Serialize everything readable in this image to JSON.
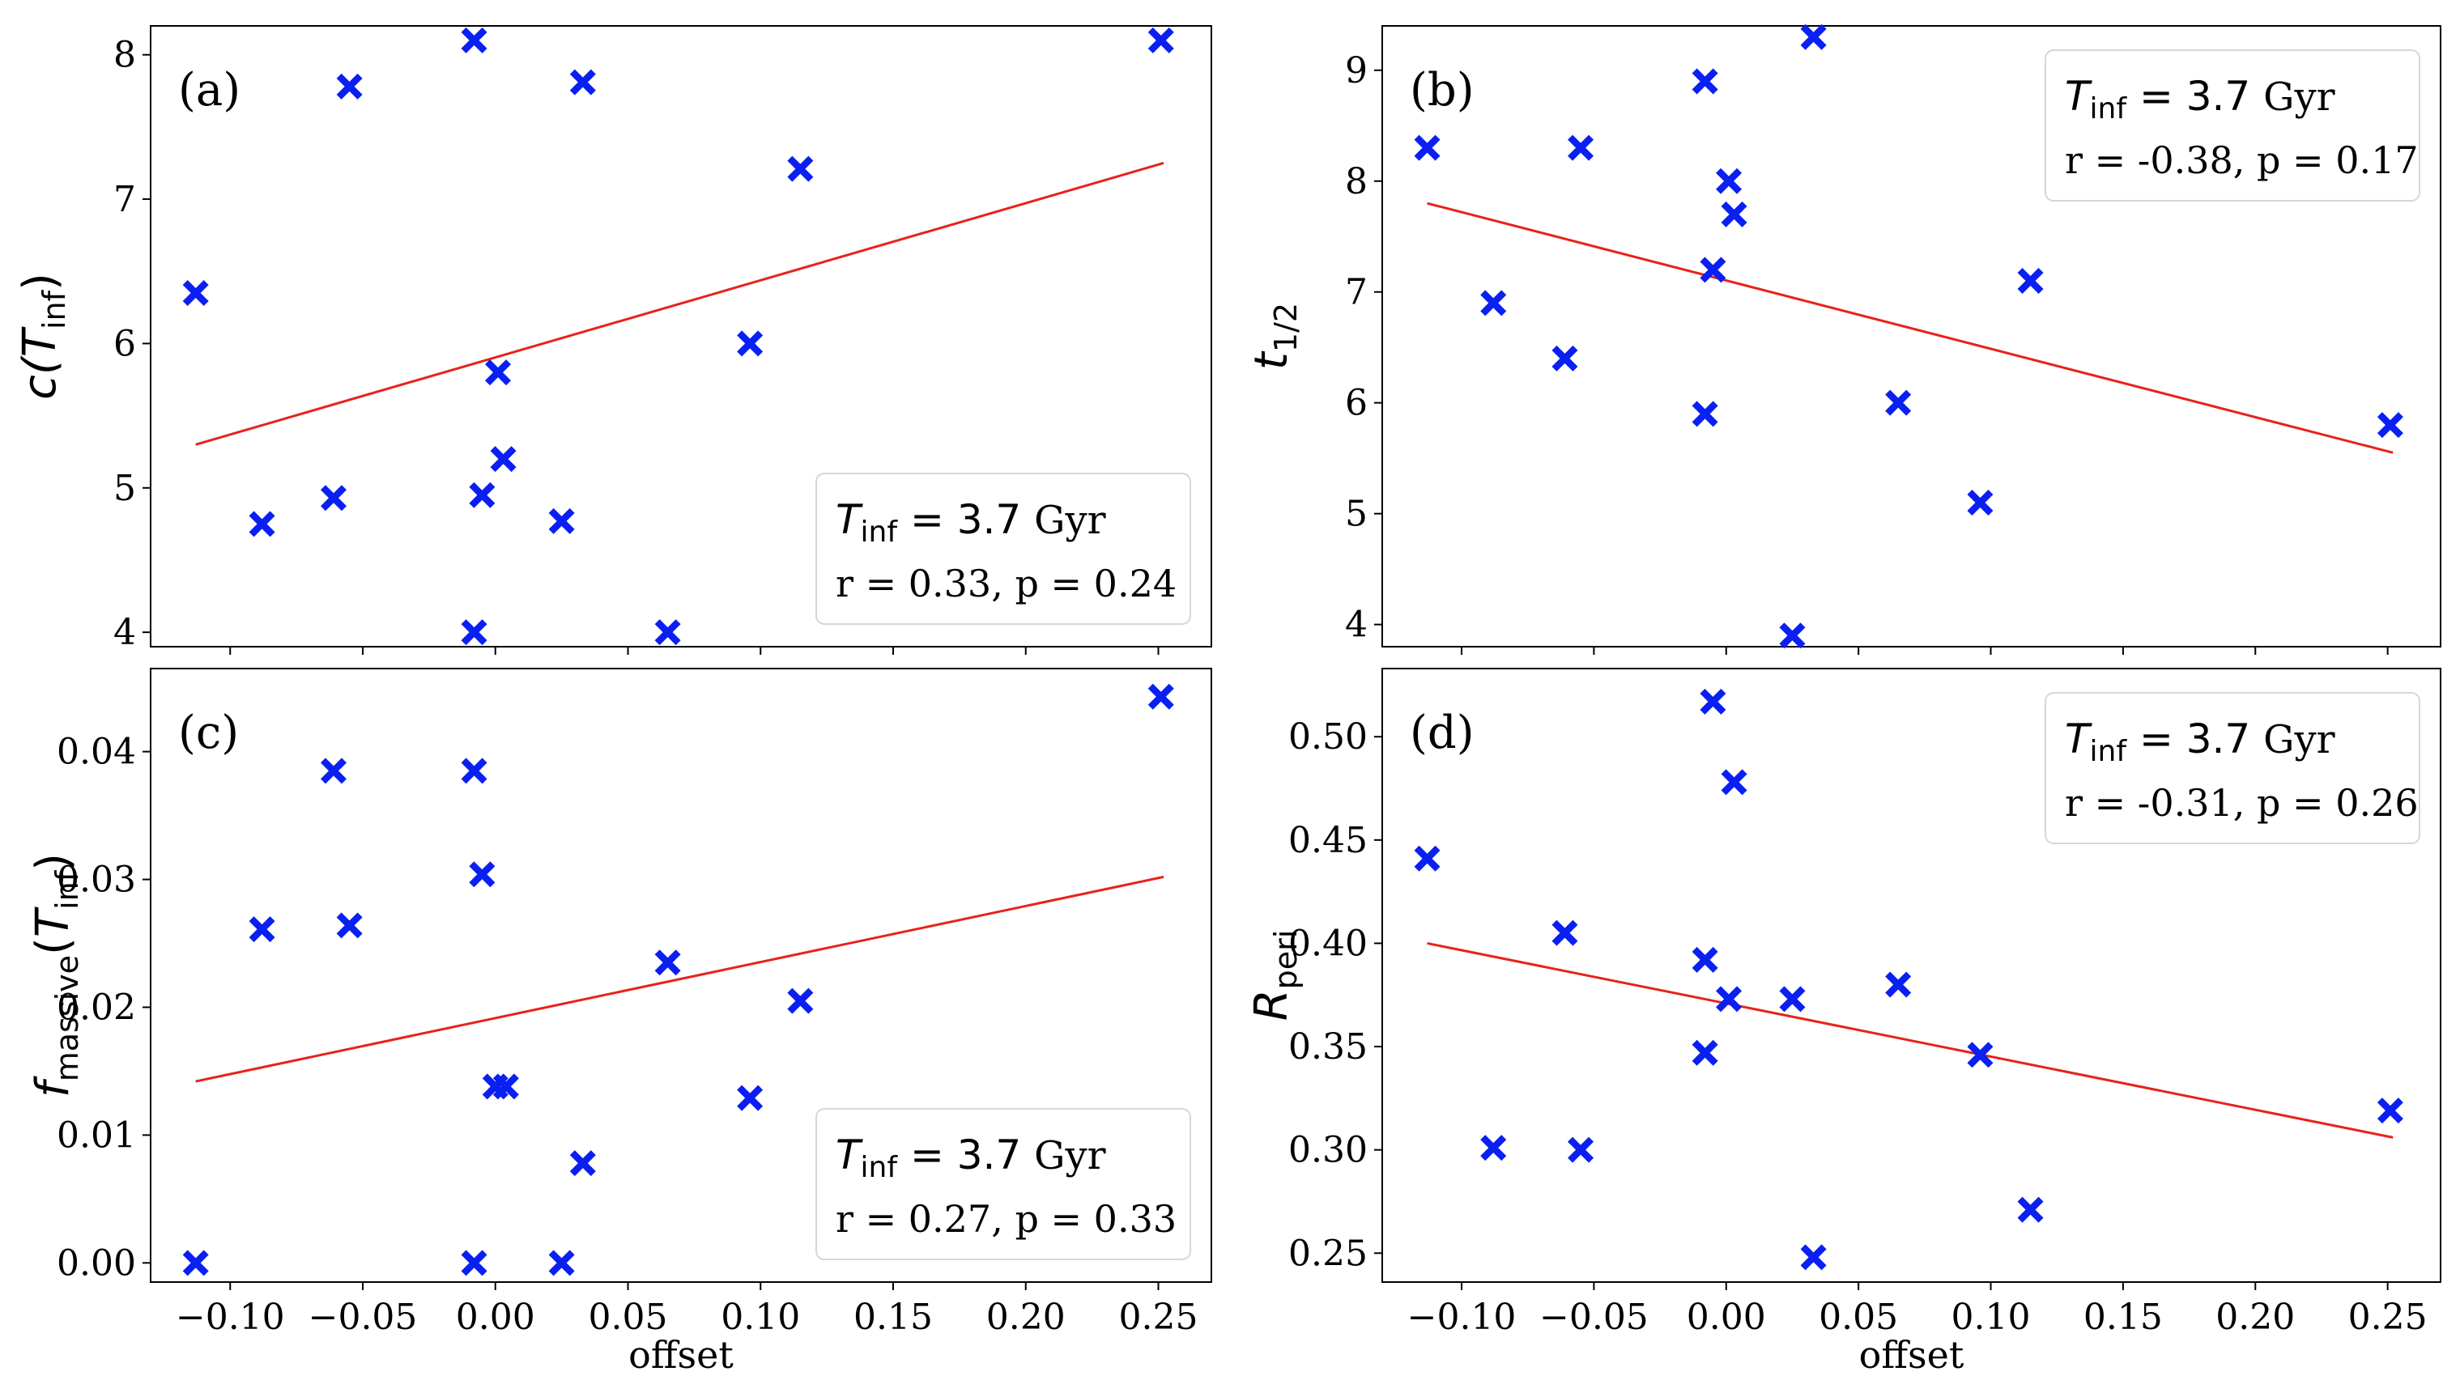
{
  "colors": {
    "marker": "#0a1ff2",
    "fit_line": "#e8221a"
  },
  "chart_data": [
    {
      "type": "scatter",
      "panel_label": "(a)",
      "ylabel": {
        "main": "c(T",
        "sub": "inf",
        "close": ")"
      },
      "xlabel": "",
      "xlim": [
        -0.13,
        0.27
      ],
      "ylim": [
        3.9,
        8.2
      ],
      "xticks": [
        -0.1,
        -0.05,
        0.0,
        0.05,
        0.1,
        0.15,
        0.2,
        0.25
      ],
      "xtick_labels": [
        "",
        "",
        "",
        "",
        "",
        "",
        "",
        ""
      ],
      "yticks": [
        4,
        5,
        6,
        7,
        8
      ],
      "ytick_labels": [
        "4",
        "5",
        "6",
        "7",
        "8"
      ],
      "legend": {
        "location": "bottom-right",
        "title_main": "T",
        "title_sub": "inf",
        "title_rest": " = 3.7 ",
        "title_unit": "Gyr",
        "stats": "r = 0.33, p = 0.24"
      },
      "fit_line": {
        "x": [
          -0.113,
          0.252
        ],
        "y": [
          5.3,
          7.25
        ]
      },
      "points": [
        {
          "x": -0.113,
          "y": 6.35
        },
        {
          "x": -0.088,
          "y": 4.75
        },
        {
          "x": -0.061,
          "y": 4.93
        },
        {
          "x": -0.055,
          "y": 7.78
        },
        {
          "x": -0.008,
          "y": 8.1
        },
        {
          "x": -0.005,
          "y": 4.95
        },
        {
          "x": -0.008,
          "y": 4.0
        },
        {
          "x": 0.001,
          "y": 5.8
        },
        {
          "x": 0.003,
          "y": 5.2
        },
        {
          "x": 0.025,
          "y": 4.77
        },
        {
          "x": 0.033,
          "y": 7.81
        },
        {
          "x": 0.065,
          "y": 4.0
        },
        {
          "x": 0.096,
          "y": 6.0
        },
        {
          "x": 0.115,
          "y": 7.21
        },
        {
          "x": 0.251,
          "y": 8.1
        }
      ]
    },
    {
      "type": "scatter",
      "panel_label": "(b)",
      "ylabel": {
        "main": "t",
        "sub": "1/2",
        "close": ""
      },
      "xlabel": "",
      "xlim": [
        -0.13,
        0.27
      ],
      "ylim": [
        3.8,
        9.4
      ],
      "xticks": [
        -0.1,
        -0.05,
        0.0,
        0.05,
        0.1,
        0.15,
        0.2,
        0.25
      ],
      "xtick_labels": [
        "",
        "",
        "",
        "",
        "",
        "",
        "",
        ""
      ],
      "yticks": [
        4,
        5,
        6,
        7,
        8,
        9
      ],
      "ytick_labels": [
        "4",
        "5",
        "6",
        "7",
        "8",
        "9"
      ],
      "legend": {
        "location": "top-right",
        "title_main": "T",
        "title_sub": "inf",
        "title_rest": " = 3.7 ",
        "title_unit": "Gyr",
        "stats": "r = -0.38, p = 0.17"
      },
      "fit_line": {
        "x": [
          -0.113,
          0.252
        ],
        "y": [
          7.8,
          5.55
        ]
      },
      "points": [
        {
          "x": -0.113,
          "y": 8.3
        },
        {
          "x": -0.088,
          "y": 6.9
        },
        {
          "x": -0.061,
          "y": 6.4
        },
        {
          "x": -0.055,
          "y": 8.3
        },
        {
          "x": -0.008,
          "y": 8.9
        },
        {
          "x": -0.005,
          "y": 7.2
        },
        {
          "x": -0.008,
          "y": 5.9
        },
        {
          "x": 0.001,
          "y": 8.0
        },
        {
          "x": 0.003,
          "y": 7.7
        },
        {
          "x": 0.025,
          "y": 3.9
        },
        {
          "x": 0.033,
          "y": 9.3
        },
        {
          "x": 0.065,
          "y": 6.0
        },
        {
          "x": 0.096,
          "y": 5.1
        },
        {
          "x": 0.115,
          "y": 7.1
        },
        {
          "x": 0.251,
          "y": 5.8
        }
      ]
    },
    {
      "type": "scatter",
      "panel_label": "(c)",
      "ylabel": {
        "main": "f",
        "sub": "massive",
        "close": "(T",
        "sub2": "inf",
        "close2": ")"
      },
      "xlabel": "offset",
      "xlim": [
        -0.13,
        0.27
      ],
      "ylim": [
        -0.0015,
        0.0465
      ],
      "xticks": [
        -0.1,
        -0.05,
        0.0,
        0.05,
        0.1,
        0.15,
        0.2,
        0.25
      ],
      "xtick_labels": [
        "−0.10",
        "−0.05",
        "0.00",
        "0.05",
        "0.10",
        "0.15",
        "0.20",
        "0.25"
      ],
      "yticks": [
        0.0,
        0.01,
        0.02,
        0.03,
        0.04
      ],
      "ytick_labels": [
        "0.00",
        "0.01",
        "0.02",
        "0.03",
        "0.04"
      ],
      "legend": {
        "location": "bottom-right",
        "title_main": "T",
        "title_sub": "inf",
        "title_rest": " = 3.7 ",
        "title_unit": "Gyr",
        "stats": "r = 0.27, p = 0.33"
      },
      "fit_line": {
        "x": [
          -0.113,
          0.252
        ],
        "y": [
          0.0142,
          0.0302
        ]
      },
      "points": [
        {
          "x": -0.113,
          "y": 0.0
        },
        {
          "x": -0.088,
          "y": 0.0261
        },
        {
          "x": -0.061,
          "y": 0.0385
        },
        {
          "x": -0.055,
          "y": 0.0264
        },
        {
          "x": -0.008,
          "y": 0.0385
        },
        {
          "x": -0.005,
          "y": 0.0304
        },
        {
          "x": -0.008,
          "y": 0.0
        },
        {
          "x": 0.0,
          "y": 0.0138
        },
        {
          "x": 0.004,
          "y": 0.0138
        },
        {
          "x": 0.025,
          "y": 0.0
        },
        {
          "x": 0.033,
          "y": 0.0078
        },
        {
          "x": 0.065,
          "y": 0.0235
        },
        {
          "x": 0.096,
          "y": 0.0129
        },
        {
          "x": 0.115,
          "y": 0.0205
        },
        {
          "x": 0.251,
          "y": 0.0443
        }
      ]
    },
    {
      "type": "scatter",
      "panel_label": "(d)",
      "ylabel": {
        "main": "R",
        "sub": "peri",
        "close": ""
      },
      "xlabel": "offset",
      "xlim": [
        -0.13,
        0.27
      ],
      "ylim": [
        0.236,
        0.533
      ],
      "xticks": [
        -0.1,
        -0.05,
        0.0,
        0.05,
        0.1,
        0.15,
        0.2,
        0.25
      ],
      "xtick_labels": [
        "−0.10",
        "−0.05",
        "0.00",
        "0.05",
        "0.10",
        "0.15",
        "0.20",
        "0.25"
      ],
      "yticks": [
        0.25,
        0.3,
        0.35,
        0.4,
        0.45,
        0.5
      ],
      "ytick_labels": [
        "0.25",
        "0.30",
        "0.35",
        "0.40",
        "0.45",
        "0.50"
      ],
      "legend": {
        "location": "top-right",
        "title_main": "T",
        "title_sub": "inf",
        "title_rest": " = 3.7 ",
        "title_unit": "Gyr",
        "stats": "r = -0.31, p = 0.26"
      },
      "fit_line": {
        "x": [
          -0.113,
          0.252
        ],
        "y": [
          0.4,
          0.306
        ]
      },
      "points": [
        {
          "x": -0.113,
          "y": 0.441
        },
        {
          "x": -0.088,
          "y": 0.301
        },
        {
          "x": -0.061,
          "y": 0.405
        },
        {
          "x": -0.055,
          "y": 0.3
        },
        {
          "x": -0.008,
          "y": 0.392
        },
        {
          "x": -0.005,
          "y": 0.517
        },
        {
          "x": -0.008,
          "y": 0.347
        },
        {
          "x": 0.001,
          "y": 0.373
        },
        {
          "x": 0.003,
          "y": 0.478
        },
        {
          "x": 0.025,
          "y": 0.373
        },
        {
          "x": 0.033,
          "y": 0.248
        },
        {
          "x": 0.065,
          "y": 0.38
        },
        {
          "x": 0.096,
          "y": 0.346
        },
        {
          "x": 0.115,
          "y": 0.271
        },
        {
          "x": 0.251,
          "y": 0.319
        }
      ]
    }
  ]
}
